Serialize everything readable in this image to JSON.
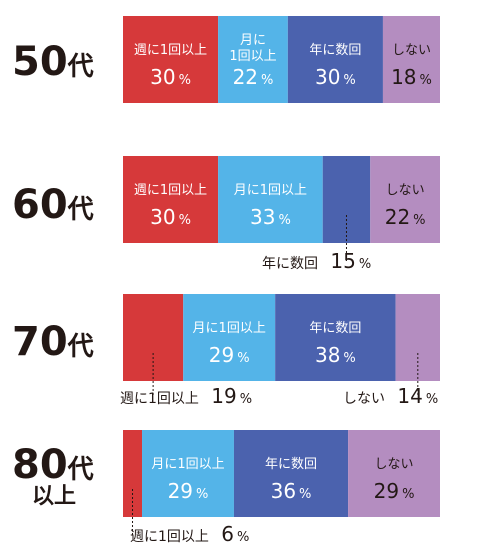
{
  "chart_data": {
    "type": "bar",
    "orientation": "horizontal-stacked-100",
    "unit": "%",
    "series_names": [
      "週に1回以上",
      "月に1回以上",
      "年に数回",
      "しない"
    ],
    "series_display": [
      "週に1回以上",
      "月に\n1回以上",
      "年に数回",
      "しない"
    ],
    "colors": [
      "#d6393a",
      "#54b4e8",
      "#4b62ae",
      "#b48dc0"
    ],
    "groups": [
      {
        "label": "50代",
        "label_num": "50",
        "label_suffix": "代",
        "label_sub": "",
        "values": [
          30,
          22,
          30,
          18
        ]
      },
      {
        "label": "60代",
        "label_num": "60",
        "label_suffix": "代",
        "label_sub": "",
        "values": [
          30,
          33,
          15,
          22
        ]
      },
      {
        "label": "70代",
        "label_num": "70",
        "label_suffix": "代",
        "label_sub": "",
        "values": [
          19,
          29,
          38,
          14
        ]
      },
      {
        "label": "80代以上",
        "label_num": "80",
        "label_suffix": "代",
        "label_sub": "以上",
        "values": [
          6,
          29,
          36,
          29
        ]
      }
    ]
  }
}
